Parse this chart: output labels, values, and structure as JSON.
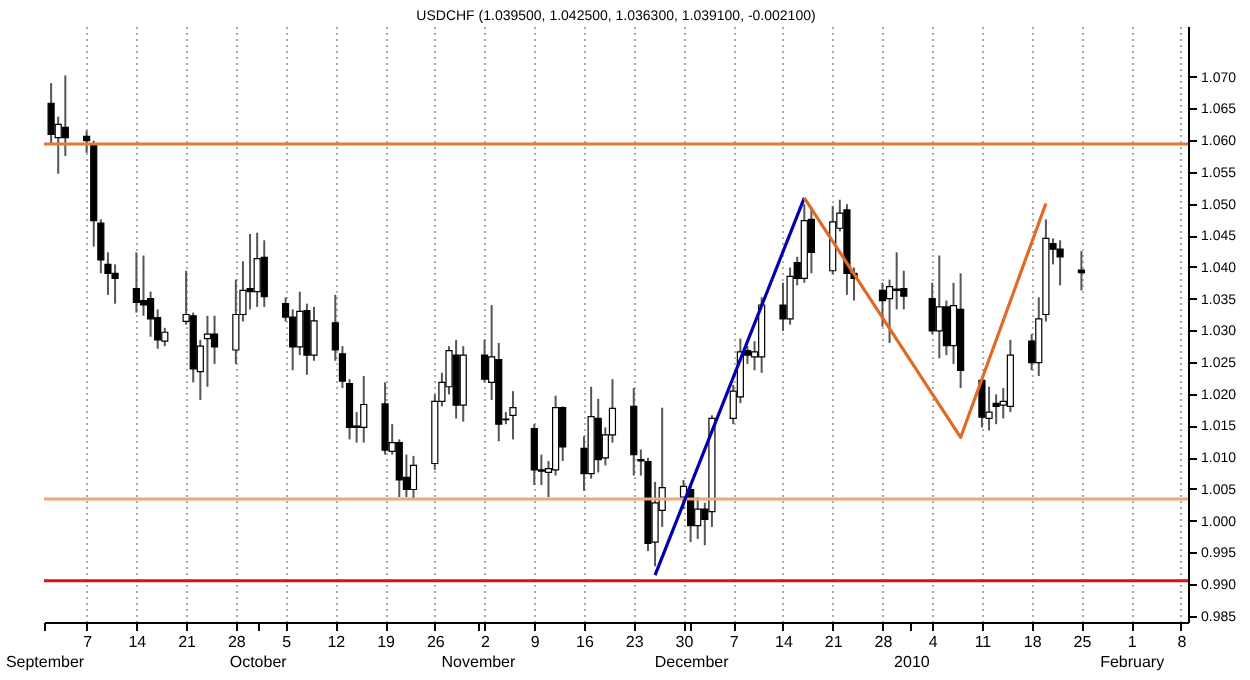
{
  "chart_data": {
    "type": "candlestick",
    "title": "USDCHF (1.039500, 1.042500, 1.036300, 1.039100, -0.002100)",
    "x": [
      "2009-09-02",
      "2009-09-03",
      "2009-09-04",
      "2009-09-07",
      "2009-09-08",
      "2009-09-09",
      "2009-09-10",
      "2009-09-11",
      "2009-09-14",
      "2009-09-15",
      "2009-09-16",
      "2009-09-17",
      "2009-09-18",
      "2009-09-21",
      "2009-09-22",
      "2009-09-23",
      "2009-09-24",
      "2009-09-25",
      "2009-09-28",
      "2009-09-29",
      "2009-09-30",
      "2009-10-01",
      "2009-10-02",
      "2009-10-05",
      "2009-10-06",
      "2009-10-07",
      "2009-10-08",
      "2009-10-09",
      "2009-10-12",
      "2009-10-13",
      "2009-10-14",
      "2009-10-15",
      "2009-10-16",
      "2009-10-19",
      "2009-10-20",
      "2009-10-21",
      "2009-10-22",
      "2009-10-23",
      "2009-10-26",
      "2009-10-27",
      "2009-10-28",
      "2009-10-29",
      "2009-10-30",
      "2009-11-02",
      "2009-11-03",
      "2009-11-04",
      "2009-11-05",
      "2009-11-06",
      "2009-11-09",
      "2009-11-10",
      "2009-11-11",
      "2009-11-12",
      "2009-11-13",
      "2009-11-16",
      "2009-11-17",
      "2009-11-18",
      "2009-11-19",
      "2009-11-20",
      "2009-11-23",
      "2009-11-24",
      "2009-11-25",
      "2009-11-26",
      "2009-11-27",
      "2009-11-30",
      "2009-12-01",
      "2009-12-02",
      "2009-12-03",
      "2009-12-04",
      "2009-12-07",
      "2009-12-08",
      "2009-12-09",
      "2009-12-10",
      "2009-12-11",
      "2009-12-14",
      "2009-12-15",
      "2009-12-16",
      "2009-12-17",
      "2009-12-18",
      "2009-12-21",
      "2009-12-22",
      "2009-12-23",
      "2009-12-24",
      "2009-12-28",
      "2009-12-29",
      "2009-12-30",
      "2009-12-31",
      "2010-01-04",
      "2010-01-05",
      "2010-01-06",
      "2010-01-07",
      "2010-01-08",
      "2010-01-11",
      "2010-01-12",
      "2010-01-13",
      "2010-01-14",
      "2010-01-15",
      "2010-01-18",
      "2010-01-19",
      "2010-01-20",
      "2010-01-21",
      "2010-01-22",
      "2010-01-25"
    ],
    "ohlc": [
      [
        1.0658,
        1.069,
        1.0594,
        1.0609
      ],
      [
        1.0604,
        1.0637,
        1.0547,
        1.0625
      ],
      [
        1.062,
        1.0702,
        1.0575,
        1.0604
      ],
      [
        1.0606,
        1.0615,
        1.058,
        1.0599
      ],
      [
        1.0594,
        1.0599,
        1.0432,
        1.0473
      ],
      [
        1.0469,
        1.0475,
        1.039,
        1.0411
      ],
      [
        1.0404,
        1.0423,
        1.0356,
        1.039
      ],
      [
        1.039,
        1.0404,
        1.0342,
        1.0382
      ],
      [
        1.0366,
        1.0423,
        1.0328,
        1.0344
      ],
      [
        1.0347,
        1.0418,
        1.0323,
        1.034
      ],
      [
        1.035,
        1.0361,
        1.029,
        1.0318
      ],
      [
        1.032,
        1.0333,
        1.0271,
        1.0285
      ],
      [
        1.0283,
        1.0304,
        1.0275,
        1.0297
      ],
      [
        1.0314,
        1.0394,
        1.0309,
        1.0325
      ],
      [
        1.0323,
        1.0328,
        1.0218,
        1.0239
      ],
      [
        1.0235,
        1.0285,
        1.019,
        1.0275
      ],
      [
        1.0287,
        1.0323,
        1.0211,
        1.0294
      ],
      [
        1.0294,
        1.0323,
        1.0247,
        1.0274
      ],
      [
        1.0269,
        1.038,
        1.0247,
        1.0325
      ],
      [
        1.0325,
        1.0409,
        1.0314,
        1.0363
      ],
      [
        1.0366,
        1.0452,
        1.0333,
        1.0361
      ],
      [
        1.0361,
        1.0454,
        1.0337,
        1.0413
      ],
      [
        1.0415,
        1.0442,
        1.0337,
        1.0353
      ],
      [
        1.0342,
        1.0352,
        1.0314,
        1.0321
      ],
      [
        1.0321,
        1.0333,
        1.0237,
        1.0274
      ],
      [
        1.0274,
        1.0361,
        1.0261,
        1.033
      ],
      [
        1.0331,
        1.0342,
        1.023,
        1.0261
      ],
      [
        1.0261,
        1.0337,
        1.0252,
        1.0315
      ],
      [
        1.0312,
        1.0356,
        1.0252,
        1.0269
      ],
      [
        1.0263,
        1.0275,
        1.0209,
        1.022
      ],
      [
        1.0216,
        1.0223,
        1.0128,
        1.0147
      ],
      [
        1.0147,
        1.0171,
        1.0123,
        1.0149
      ],
      [
        1.0147,
        1.0228,
        1.0123,
        1.0183
      ],
      [
        1.0184,
        1.0218,
        1.0104,
        1.0111
      ],
      [
        1.0109,
        1.0152,
        1.0104,
        1.0123
      ],
      [
        1.0123,
        1.0128,
        1.0037,
        1.0064
      ],
      [
        1.0068,
        1.0104,
        1.0037,
        1.0049
      ],
      [
        1.0049,
        1.0102,
        1.0033,
        1.0087
      ],
      [
        1.009,
        1.0199,
        1.008,
        1.0188
      ],
      [
        1.0188,
        1.0233,
        1.018,
        1.0218
      ],
      [
        1.0211,
        1.0275,
        1.0199,
        1.0268
      ],
      [
        1.0261,
        1.0285,
        1.0161,
        1.0182
      ],
      [
        1.0182,
        1.0275,
        1.0156,
        1.0261
      ],
      [
        1.0261,
        1.0285,
        1.0218,
        1.0223
      ],
      [
        1.0218,
        1.034,
        1.019,
        1.0258
      ],
      [
        1.0254,
        1.028,
        1.0125,
        1.0152
      ],
      [
        1.016,
        1.0171,
        1.0152,
        1.0159
      ],
      [
        1.0166,
        1.0204,
        1.0128,
        1.0178
      ],
      [
        1.0145,
        1.0152,
        1.0056,
        1.008
      ],
      [
        1.008,
        1.0104,
        1.0056,
        1.0078
      ],
      [
        1.0076,
        1.0094,
        1.0037,
        1.0082
      ],
      [
        1.008,
        1.0197,
        1.0071,
        1.0178
      ],
      [
        1.0178,
        1.018,
        1.0094,
        1.0116
      ],
      [
        1.0114,
        1.0133,
        1.0047,
        1.0074
      ],
      [
        1.0074,
        1.0211,
        1.0066,
        1.0164
      ],
      [
        1.0161,
        1.0192,
        1.0076,
        1.0096
      ],
      [
        1.0099,
        1.0147,
        1.0087,
        1.0135
      ],
      [
        1.0135,
        1.0223,
        1.0123,
        1.0177
      ],
      [
        1.018,
        1.0209,
        1.0071,
        1.0104
      ],
      [
        1.0096,
        1.0112,
        1.0071,
        1.0094
      ],
      [
        1.0093,
        1.0099,
        0.9952,
        0.9964
      ],
      [
        0.9966,
        1.0061,
        0.9928,
        1.0028
      ],
      [
        1.0016,
        1.0178,
        0.999,
        1.0052
      ],
      [
        1.0037,
        1.0064,
        1.0018,
        1.0054
      ],
      [
        1.0049,
        1.0056,
        0.9966,
        0.9992
      ],
      [
        0.9992,
        1.0037,
        0.9971,
        1.0018
      ],
      [
        1.0018,
        1.0028,
        0.9961,
        1.0002
      ],
      [
        1.0014,
        1.0166,
        0.999,
        1.0161
      ],
      [
        1.0161,
        1.0214,
        1.0152,
        1.0204
      ],
      [
        1.0195,
        1.0287,
        1.0185,
        1.0266
      ],
      [
        1.0268,
        1.0275,
        1.0247,
        1.0261
      ],
      [
        1.0258,
        1.0283,
        1.0237,
        1.0266
      ],
      [
        1.0258,
        1.0352,
        1.0233,
        1.034
      ],
      [
        1.034,
        1.0375,
        1.0299,
        1.0318
      ],
      [
        1.0318,
        1.0399,
        1.0309,
        1.0385
      ],
      [
        1.0407,
        1.0416,
        1.0371,
        1.0382
      ],
      [
        1.0382,
        1.0499,
        1.0375,
        1.0473
      ],
      [
        1.0475,
        1.0494,
        1.039,
        1.0423
      ],
      [
        1.0394,
        1.0496,
        1.0388,
        1.0471
      ],
      [
        1.0461,
        1.0506,
        1.0456,
        1.0485
      ],
      [
        1.049,
        1.0499,
        1.0356,
        1.039
      ],
      [
        1.039,
        1.0399,
        1.0347,
        1.0382
      ],
      [
        1.0363,
        1.0375,
        1.0306,
        1.0347
      ],
      [
        1.035,
        1.038,
        1.028,
        1.0369
      ],
      [
        1.0363,
        1.0423,
        1.0333,
        1.0365
      ],
      [
        1.0366,
        1.0394,
        1.0333,
        1.0354
      ],
      [
        1.035,
        1.0375,
        1.0294,
        1.0299
      ],
      [
        1.0299,
        1.0418,
        1.0256,
        1.0337
      ],
      [
        1.0337,
        1.0347,
        1.0261,
        1.0276
      ],
      [
        1.0276,
        1.0375,
        1.0247,
        1.0339
      ],
      [
        1.0333,
        1.039,
        1.0209,
        1.0237
      ],
      [
        1.0221,
        1.0223,
        1.0147,
        1.0163
      ],
      [
        1.0161,
        1.0211,
        1.0142,
        1.0171
      ],
      [
        1.0185,
        1.0199,
        1.0152,
        1.018
      ],
      [
        1.0182,
        1.0209,
        1.0161,
        1.0188
      ],
      [
        1.018,
        1.0285,
        1.0171,
        1.0261
      ],
      [
        1.0283,
        1.0294,
        1.0237,
        1.0249
      ],
      [
        1.0249,
        1.0352,
        1.0228,
        1.0318
      ],
      [
        1.0325,
        1.0475,
        1.0314,
        1.0445
      ],
      [
        1.0437,
        1.0445,
        1.0404,
        1.0428
      ],
      [
        1.0428,
        1.0442,
        1.0371,
        1.0416
      ],
      [
        1.0395,
        1.0425,
        1.0363,
        1.0391
      ]
    ],
    "series": [
      {
        "type": "line",
        "color": "#0000aa",
        "x": [
          "2009-11-26",
          "2009-12-17"
        ],
        "values": [
          0.9914,
          1.0509
        ]
      },
      {
        "type": "line",
        "color": "#e06a28",
        "x": [
          "2009-12-17",
          "2010-01-08",
          "2010-01-20"
        ],
        "values": [
          1.0509,
          1.0131,
          1.05
        ]
      }
    ],
    "ref_lines": [
      {
        "axis": "y",
        "value": 1.0594,
        "color": "#e8783a"
      },
      {
        "axis": "y",
        "value": 1.0034,
        "color": "#f2a77a"
      },
      {
        "axis": "y",
        "value": 0.9905,
        "color": "#e01010"
      }
    ],
    "xlim": [
      "2009-09-01",
      "2010-02-09"
    ],
    "x2lim": [
      "2009-09-01",
      "2010-02-09"
    ],
    "xticks": [
      {
        "value": "2009-09-07",
        "label": "7"
      },
      {
        "value": "2009-09-14",
        "label": "14"
      },
      {
        "value": "2009-09-21",
        "label": "21"
      },
      {
        "value": "2009-09-28",
        "label": "28"
      },
      {
        "value": "2009-10-05",
        "label": "5"
      },
      {
        "value": "2009-10-12",
        "label": "12"
      },
      {
        "value": "2009-10-19",
        "label": "19"
      },
      {
        "value": "2009-10-26",
        "label": "26"
      },
      {
        "value": "2009-11-02",
        "label": "2"
      },
      {
        "value": "2009-11-09",
        "label": "9"
      },
      {
        "value": "2009-11-16",
        "label": "16"
      },
      {
        "value": "2009-11-23",
        "label": "23"
      },
      {
        "value": "2009-11-30",
        "label": "30"
      },
      {
        "value": "2009-12-07",
        "label": "7"
      },
      {
        "value": "2009-12-14",
        "label": "14"
      },
      {
        "value": "2009-12-21",
        "label": "21"
      },
      {
        "value": "2009-12-28",
        "label": "28"
      },
      {
        "value": "2010-01-04",
        "label": "4"
      },
      {
        "value": "2010-01-11",
        "label": "11"
      },
      {
        "value": "2010-01-18",
        "label": "18"
      },
      {
        "value": "2010-01-25",
        "label": "25"
      },
      {
        "value": "2010-02-01",
        "label": "1"
      },
      {
        "value": "2010-02-08",
        "label": "8"
      }
    ],
    "x2ticks": [
      {
        "value": "2009-09-01",
        "label": "September"
      },
      {
        "value": "2009-10-01",
        "label": "October"
      },
      {
        "value": "2009-11-01",
        "label": "November"
      },
      {
        "value": "2009-12-01",
        "label": "December"
      },
      {
        "value": "2010-01-01",
        "label": "2010"
      },
      {
        "value": "2010-02-01",
        "label": "February"
      }
    ],
    "ylim": [
      0.984,
      1.078
    ],
    "yticks": [
      {
        "value": 0.985,
        "label": "0.985"
      },
      {
        "value": 0.99,
        "label": "0.990"
      },
      {
        "value": 0.995,
        "label": "0.995"
      },
      {
        "value": 1.0,
        "label": "1.000"
      },
      {
        "value": 1.005,
        "label": "1.005"
      },
      {
        "value": 1.01,
        "label": "1.010"
      },
      {
        "value": 1.015,
        "label": "1.015"
      },
      {
        "value": 1.02,
        "label": "1.020"
      },
      {
        "value": 1.025,
        "label": "1.025"
      },
      {
        "value": 1.03,
        "label": "1.030"
      },
      {
        "value": 1.035,
        "label": "1.035"
      },
      {
        "value": 1.04,
        "label": "1.040"
      },
      {
        "value": 1.045,
        "label": "1.045"
      },
      {
        "value": 1.05,
        "label": "1.050"
      },
      {
        "value": 1.055,
        "label": "1.055"
      },
      {
        "value": 1.06,
        "label": "1.060"
      },
      {
        "value": 1.065,
        "label": "1.065"
      },
      {
        "value": 1.07,
        "label": "1.070"
      }
    ],
    "grid": "x"
  }
}
